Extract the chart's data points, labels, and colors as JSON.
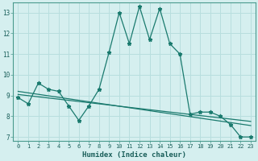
{
  "xlabel": "Humidex (Indice chaleur)",
  "ylabel": "",
  "background_color": "#d5efef",
  "grid_color": "#b8dede",
  "line_color": "#1a7a6e",
  "xlim": [
    -0.5,
    23.5
  ],
  "ylim": [
    6.8,
    13.5
  ],
  "yticks": [
    7,
    8,
    9,
    10,
    11,
    12,
    13
  ],
  "xticks": [
    0,
    1,
    2,
    3,
    4,
    5,
    6,
    7,
    8,
    9,
    10,
    11,
    12,
    13,
    14,
    15,
    16,
    17,
    18,
    19,
    20,
    21,
    22,
    23
  ],
  "series1_x": [
    0,
    1,
    2,
    3,
    4,
    5,
    6,
    7,
    8,
    9,
    10,
    11,
    12,
    13,
    14,
    15,
    16,
    17,
    18,
    19,
    20,
    21,
    22,
    23
  ],
  "series1_y": [
    8.9,
    8.6,
    9.6,
    9.3,
    9.2,
    8.5,
    7.8,
    8.5,
    9.3,
    11.1,
    13.0,
    11.5,
    13.3,
    11.7,
    13.2,
    11.5,
    11.0,
    8.1,
    8.2,
    8.2,
    8.0,
    7.6,
    7.0,
    7.0
  ],
  "series2_x": [
    0,
    23
  ],
  "series2_y": [
    9.2,
    7.55
  ],
  "series3_x": [
    0,
    23
  ],
  "series3_y": [
    9.05,
    7.75
  ]
}
